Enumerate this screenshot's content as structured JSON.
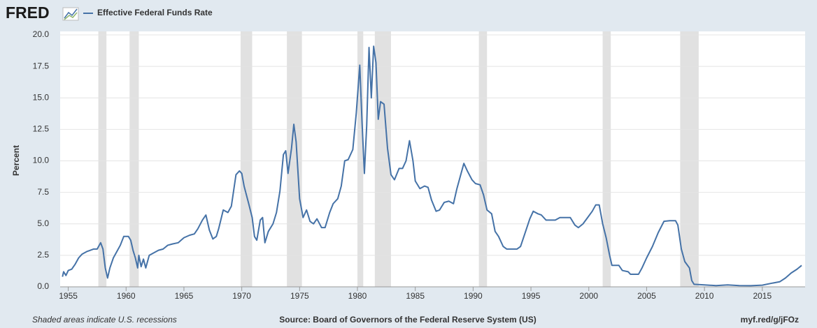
{
  "chart_data": {
    "type": "line",
    "logo": "FRED",
    "y_label": "Percent",
    "note": "Shaded areas indicate U.S. recessions",
    "source": "Source: Board of Governors of the Federal Reserve System (US)",
    "url": "myf.red/g/jFOz",
    "xlim": [
      1954.3,
      2018.7
    ],
    "xticks": [
      1955,
      1960,
      1965,
      1970,
      1975,
      1980,
      1985,
      1990,
      1995,
      2000,
      2005,
      2010,
      2015
    ],
    "ylim": [
      0,
      20
    ],
    "yticks": [
      {
        "value": 0,
        "label": "0.0"
      },
      {
        "value": 2.5,
        "label": "2.5"
      },
      {
        "value": 5,
        "label": "5.0"
      },
      {
        "value": 7.5,
        "label": "7.5"
      },
      {
        "value": 10,
        "label": "10.0"
      },
      {
        "value": 12.5,
        "label": "12.5"
      },
      {
        "value": 15,
        "label": "15.0"
      },
      {
        "value": 17.5,
        "label": "17.5"
      },
      {
        "value": 20,
        "label": "20.0"
      }
    ],
    "grid": true,
    "recessions": [
      [
        1957.6,
        1958.3
      ],
      [
        1960.3,
        1961.1
      ],
      [
        1969.9,
        1970.9
      ],
      [
        1973.9,
        1975.2
      ],
      [
        1980.0,
        1980.5
      ],
      [
        1981.5,
        1982.9
      ],
      [
        1990.5,
        1991.2
      ],
      [
        2001.2,
        2001.9
      ],
      [
        2007.9,
        2009.5
      ]
    ],
    "recession_color": "#e1e1e1",
    "x": [
      1954.5,
      1954.6,
      1954.8,
      1955.0,
      1955.3,
      1955.6,
      1955.9,
      1956.2,
      1956.6,
      1956.9,
      1957.2,
      1957.5,
      1957.8,
      1958.0,
      1958.2,
      1958.4,
      1958.6,
      1958.9,
      1959.2,
      1959.5,
      1959.8,
      1960.2,
      1960.4,
      1960.6,
      1960.8,
      1961.0,
      1961.1,
      1961.3,
      1961.5,
      1961.7,
      1962.0,
      1962.4,
      1962.8,
      1963.2,
      1963.6,
      1964.0,
      1964.5,
      1965.0,
      1965.5,
      1965.9,
      1966.2,
      1966.6,
      1966.9,
      1967.2,
      1967.5,
      1967.8,
      1968.0,
      1968.4,
      1968.8,
      1969.1,
      1969.5,
      1969.8,
      1970.0,
      1970.2,
      1970.6,
      1970.9,
      1971.1,
      1971.3,
      1971.6,
      1971.8,
      1972.0,
      1972.3,
      1972.7,
      1973.0,
      1973.3,
      1973.6,
      1973.8,
      1974.0,
      1974.3,
      1974.5,
      1974.7,
      1975.0,
      1975.3,
      1975.6,
      1975.9,
      1976.2,
      1976.5,
      1976.9,
      1977.2,
      1977.6,
      1977.9,
      1978.3,
      1978.6,
      1978.9,
      1979.2,
      1979.6,
      1979.9,
      1980.2,
      1980.4,
      1980.6,
      1980.8,
      1981.0,
      1981.2,
      1981.4,
      1981.6,
      1981.8,
      1982.0,
      1982.3,
      1982.6,
      1982.9,
      1983.2,
      1983.6,
      1983.9,
      1984.2,
      1984.5,
      1984.8,
      1985.0,
      1985.4,
      1985.8,
      1986.1,
      1986.4,
      1986.8,
      1987.1,
      1987.5,
      1987.9,
      1988.3,
      1988.6,
      1988.9,
      1989.2,
      1989.5,
      1989.9,
      1990.2,
      1990.6,
      1990.9,
      1991.2,
      1991.6,
      1991.9,
      1992.2,
      1992.6,
      1992.9,
      1993.3,
      1993.8,
      1994.1,
      1994.5,
      1994.9,
      1995.2,
      1995.6,
      1995.9,
      1996.3,
      1996.7,
      1997.1,
      1997.5,
      1997.9,
      1998.4,
      1998.8,
      1999.1,
      1999.5,
      1999.9,
      2000.3,
      2000.6,
      2000.9,
      2001.2,
      2001.5,
      2001.8,
      2002.0,
      2002.6,
      2002.9,
      2003.4,
      2003.6,
      2004.3,
      2004.6,
      2005.0,
      2005.5,
      2006.0,
      2006.5,
      2007.0,
      2007.5,
      2007.7,
      2008.0,
      2008.3,
      2008.7,
      2008.9,
      2009.1,
      2010.0,
      2011.0,
      2012.0,
      2013.0,
      2014.0,
      2015.0,
      2015.9,
      2016.5,
      2017.0,
      2017.5,
      2018.0,
      2018.4
    ],
    "series": [
      {
        "name": "Effective Federal Funds Rate",
        "color": "#4572a7",
        "values": [
          0.8,
          1.2,
          0.9,
          1.3,
          1.4,
          1.8,
          2.3,
          2.6,
          2.8,
          2.9,
          3.0,
          3.0,
          3.5,
          3.0,
          1.5,
          0.7,
          1.5,
          2.3,
          2.8,
          3.3,
          4.0,
          4.0,
          3.7,
          2.9,
          2.3,
          1.5,
          2.5,
          1.6,
          2.2,
          1.5,
          2.5,
          2.7,
          2.9,
          3.0,
          3.3,
          3.4,
          3.5,
          3.9,
          4.1,
          4.2,
          4.6,
          5.3,
          5.7,
          4.5,
          3.8,
          4.0,
          4.6,
          6.1,
          5.9,
          6.4,
          8.9,
          9.2,
          9.0,
          8.0,
          6.6,
          5.5,
          4.0,
          3.7,
          5.3,
          5.5,
          3.5,
          4.4,
          5.0,
          5.9,
          7.6,
          10.5,
          10.8,
          9.0,
          11.0,
          12.9,
          11.5,
          7.0,
          5.5,
          6.1,
          5.2,
          5.0,
          5.4,
          4.7,
          4.7,
          5.9,
          6.6,
          7.0,
          8.0,
          10.0,
          10.1,
          10.9,
          13.8,
          17.6,
          13.0,
          9.0,
          12.8,
          19.0,
          15.0,
          19.1,
          17.8,
          13.3,
          14.7,
          14.5,
          11.0,
          8.9,
          8.5,
          9.4,
          9.4,
          10.0,
          11.6,
          10.0,
          8.4,
          7.8,
          8.0,
          7.9,
          6.9,
          6.0,
          6.1,
          6.7,
          6.8,
          6.6,
          7.8,
          8.8,
          9.8,
          9.2,
          8.5,
          8.2,
          8.1,
          7.3,
          6.1,
          5.8,
          4.4,
          4.0,
          3.2,
          3.0,
          3.0,
          3.0,
          3.2,
          4.3,
          5.4,
          6.0,
          5.8,
          5.7,
          5.3,
          5.3,
          5.3,
          5.5,
          5.5,
          5.5,
          4.9,
          4.7,
          5.0,
          5.5,
          6.0,
          6.5,
          6.5,
          5.0,
          3.9,
          2.5,
          1.7,
          1.7,
          1.3,
          1.2,
          1.0,
          1.0,
          1.5,
          2.3,
          3.2,
          4.3,
          5.2,
          5.25,
          5.25,
          4.9,
          3.0,
          2.0,
          1.5,
          0.5,
          0.2,
          0.15,
          0.1,
          0.15,
          0.1,
          0.09,
          0.13,
          0.3,
          0.4,
          0.7,
          1.1,
          1.4,
          1.7
        ]
      }
    ]
  }
}
